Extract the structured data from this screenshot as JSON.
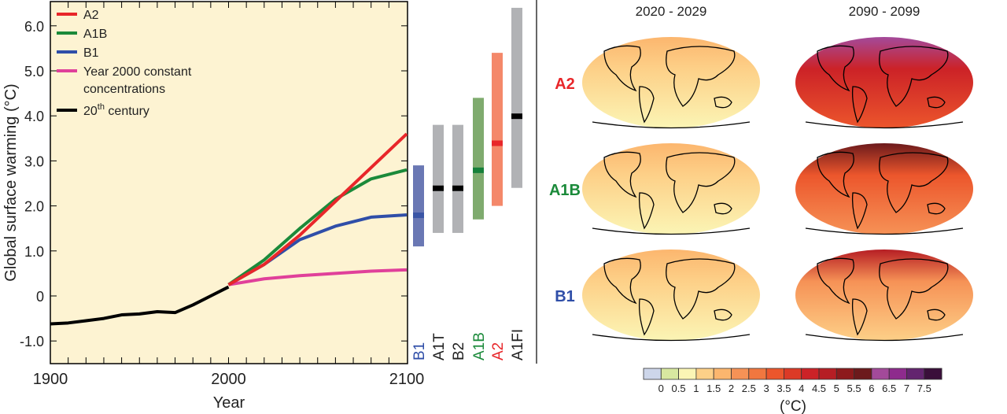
{
  "chart_data": [
    {
      "type": "line",
      "title": "",
      "xlabel": "Year",
      "ylabel": "Global surface warming (°C)",
      "xlim": [
        1900,
        2100
      ],
      "ylim": [
        -1.5,
        6.5
      ],
      "xticks": [
        "1900",
        "2000",
        "2100"
      ],
      "yticks": [
        "-1.0",
        "0",
        "1.0",
        "2.0",
        "3.0",
        "4.0",
        "5.0",
        "6.0"
      ],
      "legend_position": "top-left",
      "series": [
        {
          "name": "A2",
          "color": "#e8262a",
          "x": [
            2000,
            2020,
            2040,
            2060,
            2080,
            2100
          ],
          "y": [
            0.25,
            0.7,
            1.35,
            2.1,
            2.85,
            3.6
          ]
        },
        {
          "name": "A1B",
          "color": "#1b8a3a",
          "x": [
            2000,
            2020,
            2040,
            2060,
            2080,
            2100
          ],
          "y": [
            0.25,
            0.8,
            1.5,
            2.15,
            2.6,
            2.8
          ]
        },
        {
          "name": "B1",
          "color": "#2f4ea8",
          "x": [
            2000,
            2020,
            2040,
            2060,
            2080,
            2100
          ],
          "y": [
            0.25,
            0.7,
            1.25,
            1.55,
            1.75,
            1.8
          ]
        },
        {
          "name": "Year 2000 constant concentrations",
          "color": "#e0409a",
          "x": [
            2000,
            2020,
            2040,
            2060,
            2080,
            2100
          ],
          "y": [
            0.25,
            0.38,
            0.45,
            0.5,
            0.55,
            0.58
          ]
        },
        {
          "name": "20th century",
          "sup": "th",
          "color": "#000000",
          "x": [
            1900,
            1910,
            1920,
            1930,
            1940,
            1950,
            1960,
            1970,
            1980,
            1990,
            2000
          ],
          "y": [
            -0.62,
            -0.6,
            -0.55,
            -0.5,
            -0.42,
            -0.4,
            -0.35,
            -0.37,
            -0.2,
            0.0,
            0.2
          ]
        }
      ]
    },
    {
      "type": "range-bar",
      "categories": [
        "B1",
        "A1T",
        "B2",
        "A1B",
        "A2",
        "A1FI"
      ],
      "colors": [
        "#6a78b4",
        "#b1b2b5",
        "#b1b2b5",
        "#7fab6e",
        "#f4886a",
        "#b1b2b5"
      ],
      "label_colors": [
        "#2f4ea8",
        "#222222",
        "#222222",
        "#1b8a3a",
        "#e8262a",
        "#222222"
      ],
      "best_colors": [
        "#3a55a6",
        "#000000",
        "#000000",
        "#16803a",
        "#e8262a",
        "#000000"
      ],
      "low": [
        1.1,
        1.4,
        1.4,
        1.7,
        2.0,
        2.4
      ],
      "high": [
        2.9,
        3.8,
        3.8,
        4.4,
        5.4,
        6.4
      ],
      "best": [
        1.8,
        2.4,
        2.4,
        2.8,
        3.4,
        4.0
      ]
    },
    {
      "type": "heatmap",
      "columns": [
        "2020 - 2029",
        "2090 - 2099"
      ],
      "rows": [
        "A2",
        "A1B",
        "B1"
      ],
      "row_colors": [
        "#e8262a",
        "#1b8a3a",
        "#2f4ea8"
      ],
      "mean_warming": [
        [
          0.8,
          3.6
        ],
        [
          0.8,
          3.0
        ],
        [
          0.8,
          2.0
        ]
      ],
      "colorbar": {
        "unit": "(°C)",
        "ticks": [
          "0",
          "0.5",
          "1",
          "1.5",
          "2",
          "2.5",
          "3",
          "3.5",
          "4",
          "4.5",
          "5",
          "5.5",
          "6",
          "6.5",
          "7",
          "7.5"
        ],
        "colors": [
          "#cdd6ea",
          "#d8e8a0",
          "#fbf5b5",
          "#fdd088",
          "#fcb66e",
          "#f69256",
          "#f1773f",
          "#ec562c",
          "#dc3a26",
          "#cc2227",
          "#b61e24",
          "#8d1a1c",
          "#6c1a1c",
          "#a34a9a",
          "#8e2b8d",
          "#63246f",
          "#3a0f3a"
        ]
      }
    }
  ]
}
